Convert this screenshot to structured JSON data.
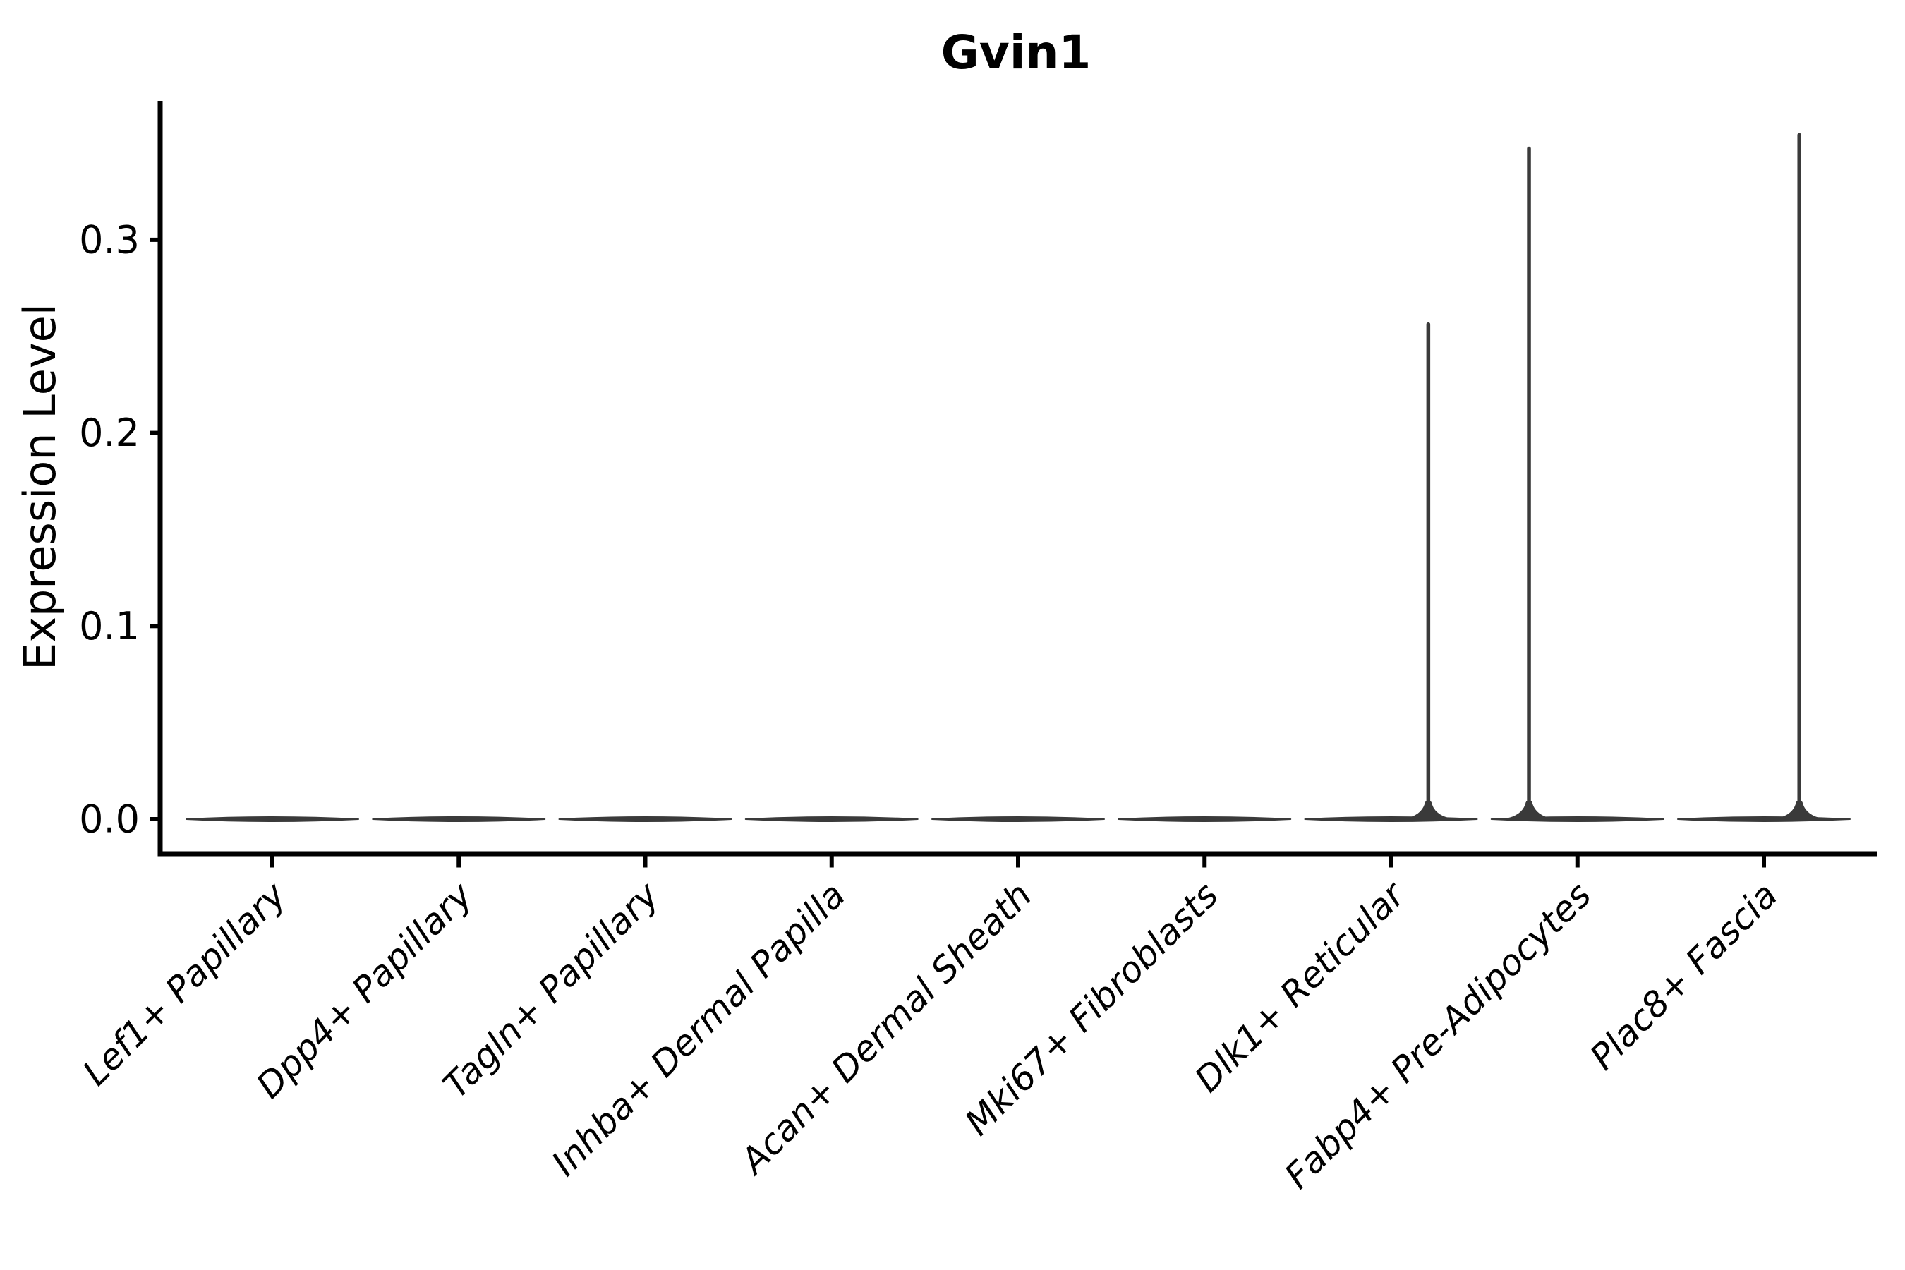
{
  "chart_data": {
    "type": "violin",
    "title": "Gvin1",
    "ylabel": "Expression Level",
    "xlabel": "",
    "grid": false,
    "legend": null,
    "background": "#ffffff",
    "categories": [
      "Lef1+ Papillary",
      "Dpp4+ Papillary",
      "Tagln+ Papillary",
      "Inhba+ Dermal Papilla",
      "Acan+ Dermal Sheath",
      "Mki67+ Fibroblasts",
      "Dlk1+ Reticular",
      "Fabp4+ Pre-Adipocytes",
      "Plac8+ Fascia"
    ],
    "y_tick_labels": [
      "0.0",
      "0.1",
      "0.2",
      "0.3"
    ],
    "y_tick_values": [
      0.0,
      0.1,
      0.2,
      0.3
    ],
    "ylim": [
      -0.018,
      0.372
    ],
    "violins": [
      {
        "category": "Lef1+ Papillary",
        "bulk_value": 0.0,
        "spike_value": null,
        "spike_offset_frac": 0
      },
      {
        "category": "Dpp4+ Papillary",
        "bulk_value": 0.0,
        "spike_value": null,
        "spike_offset_frac": 0
      },
      {
        "category": "Tagln+ Papillary",
        "bulk_value": 0.0,
        "spike_value": null,
        "spike_offset_frac": 0
      },
      {
        "category": "Inhba+ Dermal Papilla",
        "bulk_value": 0.0,
        "spike_value": null,
        "spike_offset_frac": 0
      },
      {
        "category": "Acan+ Dermal Sheath",
        "bulk_value": 0.0,
        "spike_value": null,
        "spike_offset_frac": 0
      },
      {
        "category": "Mki67+ Fibroblasts",
        "bulk_value": 0.0,
        "spike_value": null,
        "spike_offset_frac": 0
      },
      {
        "category": "Dlk1+ Reticular",
        "bulk_value": 0.0,
        "spike_value": 0.257,
        "spike_offset_frac": 0.2
      },
      {
        "category": "Fabp4+ Pre-Adipocytes",
        "bulk_value": 0.0,
        "spike_value": 0.348,
        "spike_offset_frac": -0.26
      },
      {
        "category": "Plac8+ Fascia",
        "bulk_value": 0.0,
        "spike_value": 0.355,
        "spike_offset_frac": 0.19
      }
    ],
    "colors": {
      "violin": "#3a3a3a",
      "axis": "#000000",
      "text": "#000000"
    }
  }
}
